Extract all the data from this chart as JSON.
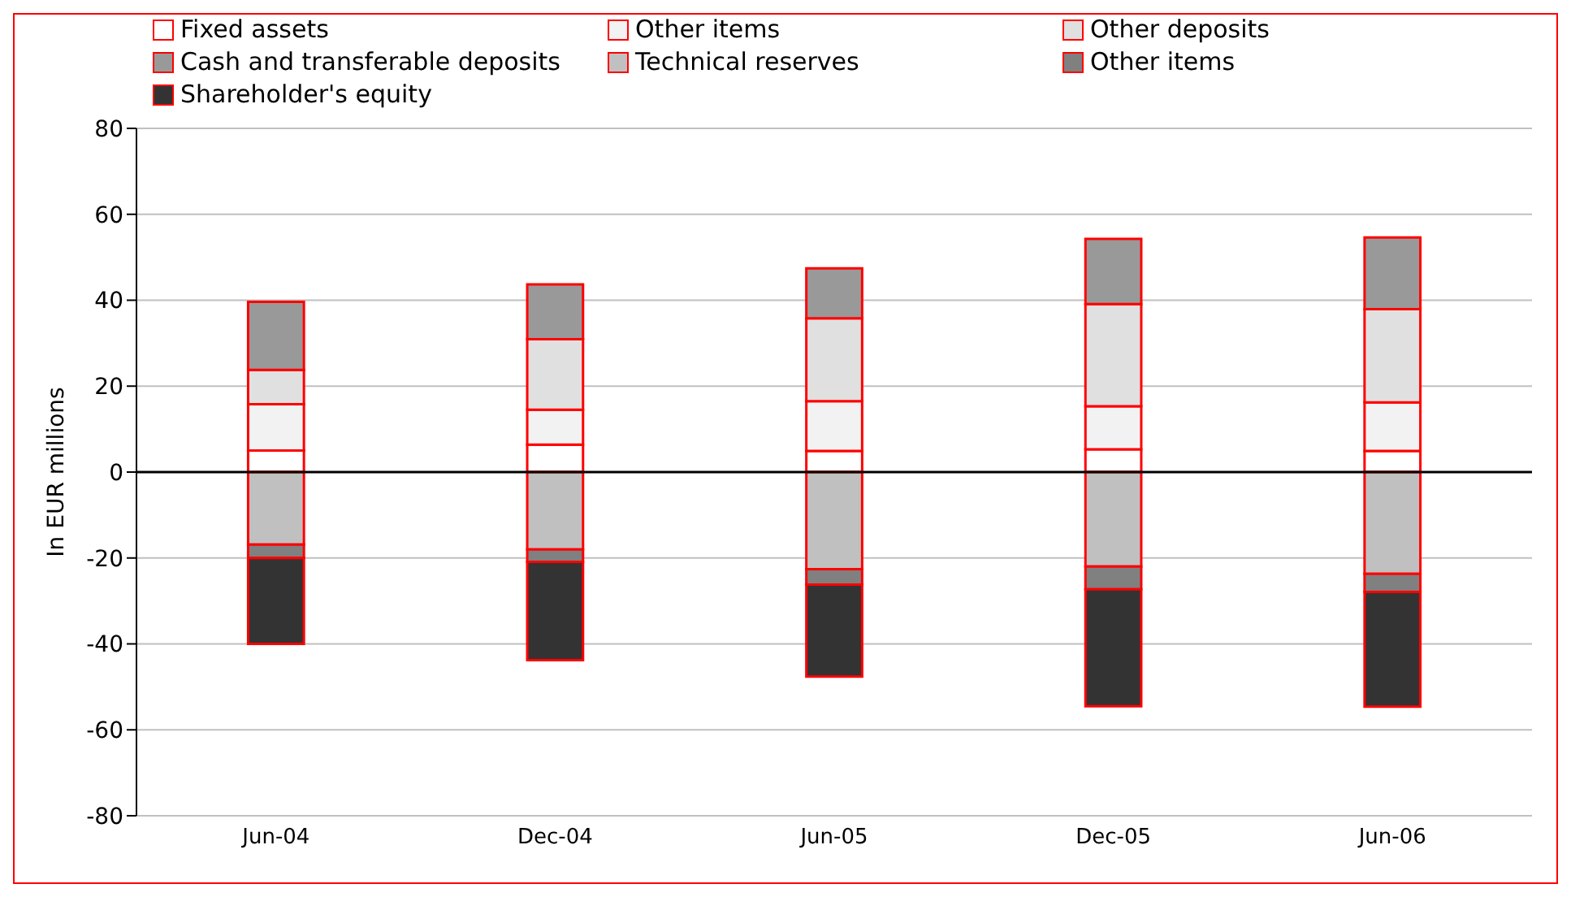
{
  "chart_data": {
    "type": "bar",
    "stacked": true,
    "ylabel": "In EUR millions",
    "categories": [
      "Jun-04",
      "Dec-04",
      "Jun-05",
      "Dec-05",
      "Jun-06"
    ],
    "series": [
      {
        "name": "Fixed assets",
        "color": "#ffffff",
        "values": [
          5,
          6.4,
          4.9,
          5.3,
          4.9
        ]
      },
      {
        "name": "Other items",
        "color": "#f2f2f2",
        "values": [
          10.8,
          8.1,
          11.6,
          10,
          11.3
        ]
      },
      {
        "name": "Other deposits",
        "color": "#e0e0e0",
        "values": [
          8,
          16.4,
          19.3,
          23.8,
          21.7
        ]
      },
      {
        "name": "Cash and transferable deposits",
        "color": "#999999",
        "values": [
          15.8,
          12.8,
          11.6,
          15.2,
          16.7
        ]
      },
      {
        "name": "Technical reserves",
        "color": "#c0c0c0",
        "values": [
          -16.9,
          -18,
          -22.6,
          -22,
          -23.7
        ]
      },
      {
        "name": "Other items",
        "color": "#808080",
        "values": [
          -3.1,
          -2.9,
          -3.6,
          -5.3,
          -4.2
        ]
      },
      {
        "name": "Shareholder's equity",
        "color": "#333333",
        "values": [
          -20,
          -22.9,
          -21.4,
          -27.2,
          -26.7
        ]
      }
    ],
    "ylim": [
      -80,
      80
    ],
    "yticks": [
      -80,
      -60,
      -40,
      -20,
      0,
      20,
      40,
      60,
      80
    ],
    "grid": "y",
    "legend": "top"
  }
}
